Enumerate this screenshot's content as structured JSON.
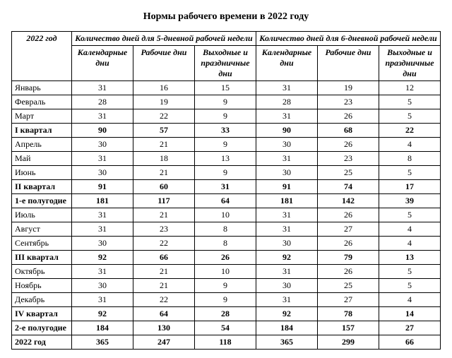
{
  "title": "Нормы рабочего времени в 2022 году",
  "headers": {
    "corner": "2022 год",
    "group5": "Количество дней для 5-дневной рабочей недели",
    "group6": "Количество дней для 6-дневной рабочей недели",
    "cal": "Календарные дни",
    "work": "Рабочие дни",
    "off": "Выходные и праздничные дни"
  },
  "rows": [
    {
      "label": "Январь",
      "bold": false,
      "cal5": 31,
      "work5": 16,
      "off5": 15,
      "cal6": 31,
      "work6": 19,
      "off6": 12
    },
    {
      "label": "Февраль",
      "bold": false,
      "cal5": 28,
      "work5": 19,
      "off5": 9,
      "cal6": 28,
      "work6": 23,
      "off6": 5
    },
    {
      "label": "Март",
      "bold": false,
      "cal5": 31,
      "work5": 22,
      "off5": 9,
      "cal6": 31,
      "work6": 26,
      "off6": 5
    },
    {
      "label": "I квартал",
      "bold": true,
      "cal5": 90,
      "work5": 57,
      "off5": 33,
      "cal6": 90,
      "work6": 68,
      "off6": 22
    },
    {
      "label": "Апрель",
      "bold": false,
      "cal5": 30,
      "work5": 21,
      "off5": 9,
      "cal6": 30,
      "work6": 26,
      "off6": 4
    },
    {
      "label": "Май",
      "bold": false,
      "cal5": 31,
      "work5": 18,
      "off5": 13,
      "cal6": 31,
      "work6": 23,
      "off6": 8
    },
    {
      "label": "Июнь",
      "bold": false,
      "cal5": 30,
      "work5": 21,
      "off5": 9,
      "cal6": 30,
      "work6": 25,
      "off6": 5
    },
    {
      "label": "II квартал",
      "bold": true,
      "cal5": 91,
      "work5": 60,
      "off5": 31,
      "cal6": 91,
      "work6": 74,
      "off6": 17
    },
    {
      "label": "1-е полугодие",
      "bold": true,
      "cal5": 181,
      "work5": 117,
      "off5": 64,
      "cal6": 181,
      "work6": 142,
      "off6": 39
    },
    {
      "label": "Июль",
      "bold": false,
      "cal5": 31,
      "work5": 21,
      "off5": 10,
      "cal6": 31,
      "work6": 26,
      "off6": 5
    },
    {
      "label": "Август",
      "bold": false,
      "cal5": 31,
      "work5": 23,
      "off5": 8,
      "cal6": 31,
      "work6": 27,
      "off6": 4
    },
    {
      "label": "Сентябрь",
      "bold": false,
      "cal5": 30,
      "work5": 22,
      "off5": 8,
      "cal6": 30,
      "work6": 26,
      "off6": 4
    },
    {
      "label": "III квартал",
      "bold": true,
      "cal5": 92,
      "work5": 66,
      "off5": 26,
      "cal6": 92,
      "work6": 79,
      "off6": 13
    },
    {
      "label": "Октябрь",
      "bold": false,
      "cal5": 31,
      "work5": 21,
      "off5": 10,
      "cal6": 31,
      "work6": 26,
      "off6": 5
    },
    {
      "label": "Ноябрь",
      "bold": false,
      "cal5": 30,
      "work5": 21,
      "off5": 9,
      "cal6": 30,
      "work6": 25,
      "off6": 5
    },
    {
      "label": "Декабрь",
      "bold": false,
      "cal5": 31,
      "work5": 22,
      "off5": 9,
      "cal6": 31,
      "work6": 27,
      "off6": 4
    },
    {
      "label": "IV квартал",
      "bold": true,
      "cal5": 92,
      "work5": 64,
      "off5": 28,
      "cal6": 92,
      "work6": 78,
      "off6": 14
    },
    {
      "label": "2-е полугодие",
      "bold": true,
      "cal5": 184,
      "work5": 130,
      "off5": 54,
      "cal6": 184,
      "work6": 157,
      "off6": 27
    },
    {
      "label": "2022 год",
      "bold": true,
      "cal5": 365,
      "work5": 247,
      "off5": 118,
      "cal6": 365,
      "work6": 299,
      "off6": 66
    }
  ]
}
